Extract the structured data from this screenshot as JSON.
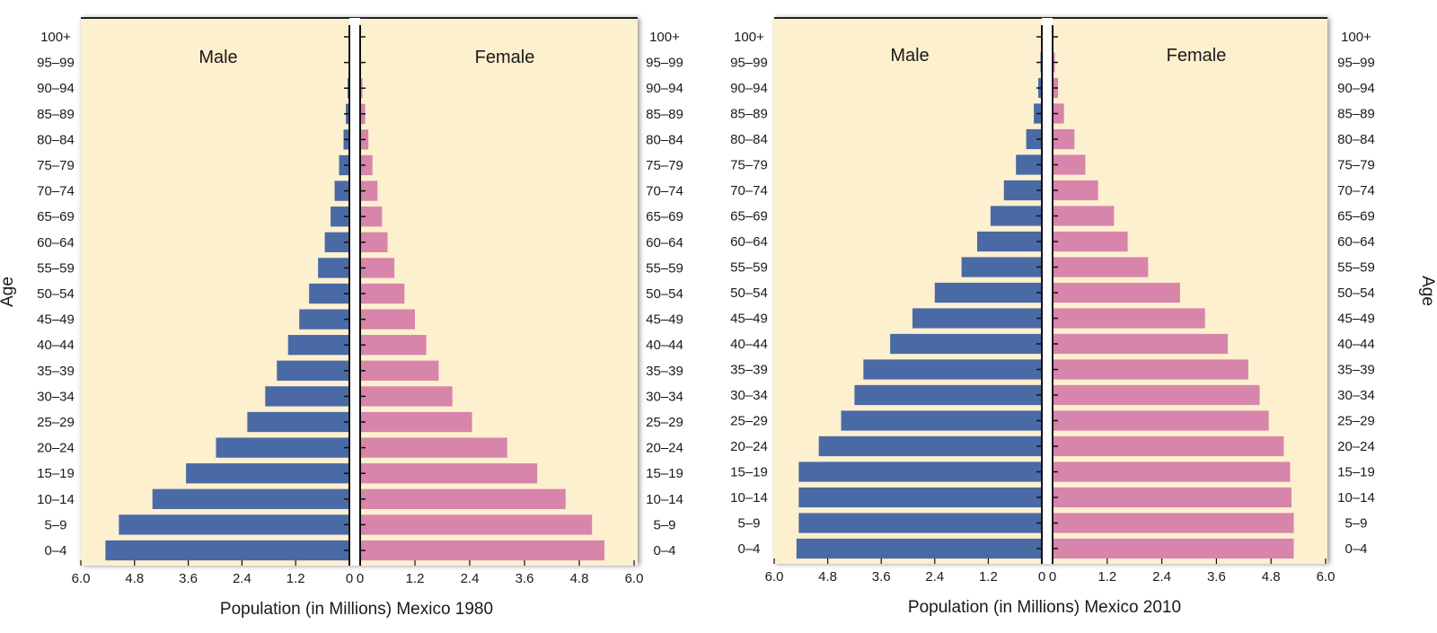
{
  "colors": {
    "panel_bg": "#fdf0cf",
    "male": "#4a6aa5",
    "female": "#d785ab",
    "axis": "#111111"
  },
  "chart_data": [
    {
      "type": "bar",
      "orientation": "horizontal",
      "subtype": "population-pyramid",
      "title": "Population (in Millions) Mexico 1980",
      "xlabel": "Population (in Millions) Mexico 1980",
      "ylabel": "Age",
      "ylabel_side": "left",
      "xlim": [
        0,
        6.0
      ],
      "xticks": [
        "6.0",
        "4.8",
        "3.6",
        "2.4",
        "1.2",
        "0",
        "0",
        "1.2",
        "2.4",
        "3.6",
        "4.8",
        "6.0"
      ],
      "male_label": "Male",
      "female_label": "Female",
      "categories": [
        "0–4",
        "5–9",
        "10–14",
        "15–19",
        "20–24",
        "25–29",
        "30–34",
        "35–39",
        "40–44",
        "45–49",
        "50–54",
        "55–59",
        "60–64",
        "65–69",
        "70–74",
        "75–79",
        "80–84",
        "85–89",
        "90–94",
        "95–99",
        "100+"
      ],
      "series": [
        {
          "name": "Male",
          "values": [
            5.45,
            5.15,
            4.4,
            3.65,
            2.98,
            2.28,
            1.88,
            1.62,
            1.37,
            1.12,
            0.9,
            0.7,
            0.55,
            0.42,
            0.33,
            0.23,
            0.13,
            0.08,
            0.04,
            0.02,
            0.01
          ]
        },
        {
          "name": "Female",
          "values": [
            5.35,
            5.08,
            4.5,
            3.88,
            3.22,
            2.45,
            2.02,
            1.72,
            1.45,
            1.2,
            0.97,
            0.75,
            0.6,
            0.48,
            0.38,
            0.27,
            0.18,
            0.11,
            0.05,
            0.02,
            0.01
          ]
        }
      ]
    },
    {
      "type": "bar",
      "orientation": "horizontal",
      "subtype": "population-pyramid",
      "title": "Population (in Millions) Mexico 2010",
      "xlabel": "Population (in Millions) Mexico 2010",
      "ylabel": "Age",
      "ylabel_side": "right",
      "xlim": [
        0,
        6.0
      ],
      "xticks": [
        "6.0",
        "4.8",
        "3.6",
        "2.4",
        "1.2",
        "0",
        "0",
        "1.2",
        "2.4",
        "3.6",
        "4.8",
        "6.0"
      ],
      "male_label": "Male",
      "female_label": "Female",
      "categories": [
        "0–4",
        "5–9",
        "10–14",
        "15–19",
        "20–24",
        "25–29",
        "30–34",
        "35–39",
        "40–44",
        "45–49",
        "50–54",
        "55–59",
        "60–64",
        "65–69",
        "70–74",
        "75–79",
        "80–84",
        "85–89",
        "90–94",
        "95–99",
        "100+"
      ],
      "series": [
        {
          "name": "Male",
          "values": [
            5.5,
            5.45,
            5.45,
            5.45,
            5.0,
            4.5,
            4.2,
            4.0,
            3.4,
            2.9,
            2.4,
            1.8,
            1.45,
            1.15,
            0.85,
            0.58,
            0.35,
            0.18,
            0.08,
            0.03,
            0.01
          ]
        },
        {
          "name": "Female",
          "values": [
            5.3,
            5.3,
            5.25,
            5.22,
            5.08,
            4.75,
            4.55,
            4.3,
            3.85,
            3.35,
            2.8,
            2.1,
            1.65,
            1.35,
            1.0,
            0.72,
            0.48,
            0.25,
            0.12,
            0.05,
            0.02
          ]
        }
      ]
    }
  ]
}
